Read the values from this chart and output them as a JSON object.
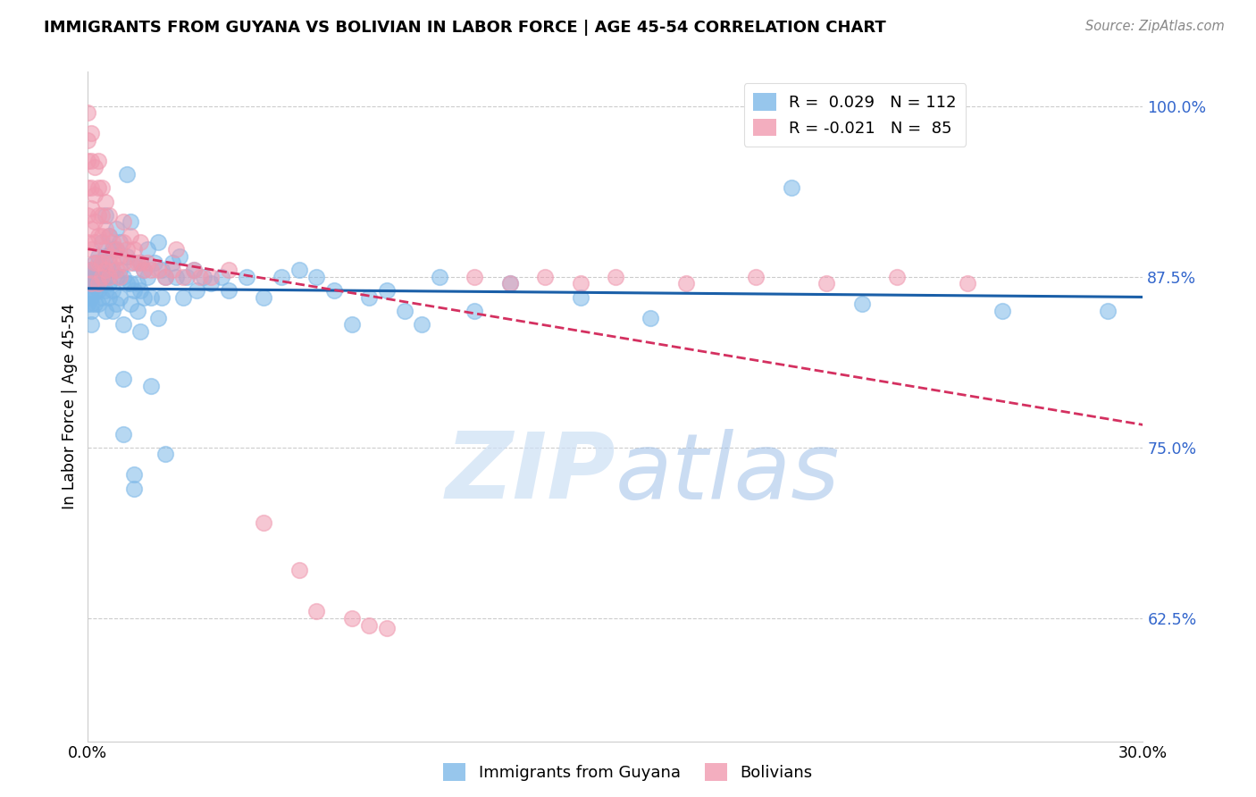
{
  "title": "IMMIGRANTS FROM GUYANA VS BOLIVIAN IN LABOR FORCE | AGE 45-54 CORRELATION CHART",
  "source": "Source: ZipAtlas.com",
  "ylabel": "In Labor Force | Age 45-54",
  "yticks": [
    0.625,
    0.75,
    0.875,
    1.0
  ],
  "ytick_labels": [
    "62.5%",
    "75.0%",
    "87.5%",
    "100.0%"
  ],
  "legend_bottom": [
    "Immigrants from Guyana",
    "Bolivians"
  ],
  "blue_color": "#7db8e8",
  "pink_color": "#f09ab0",
  "blue_line_color": "#1a5fa8",
  "pink_line_color": "#d43060",
  "watermark_zip": "ZIP",
  "watermark_atlas": "atlas",
  "xlim": [
    0.0,
    0.3
  ],
  "ylim": [
    0.535,
    1.025
  ],
  "blue_points": [
    [
      0.0,
      0.87
    ],
    [
      0.0,
      0.88
    ],
    [
      0.0,
      0.86
    ],
    [
      0.0,
      0.855
    ],
    [
      0.001,
      0.865
    ],
    [
      0.001,
      0.875
    ],
    [
      0.001,
      0.855
    ],
    [
      0.001,
      0.87
    ],
    [
      0.001,
      0.88
    ],
    [
      0.001,
      0.85
    ],
    [
      0.001,
      0.86
    ],
    [
      0.001,
      0.84
    ],
    [
      0.002,
      0.875
    ],
    [
      0.002,
      0.885
    ],
    [
      0.002,
      0.865
    ],
    [
      0.002,
      0.855
    ],
    [
      0.002,
      0.87
    ],
    [
      0.003,
      0.89
    ],
    [
      0.003,
      0.875
    ],
    [
      0.003,
      0.865
    ],
    [
      0.003,
      0.855
    ],
    [
      0.003,
      0.87
    ],
    [
      0.003,
      0.88
    ],
    [
      0.004,
      0.9
    ],
    [
      0.004,
      0.885
    ],
    [
      0.004,
      0.87
    ],
    [
      0.004,
      0.86
    ],
    [
      0.004,
      0.875
    ],
    [
      0.005,
      0.92
    ],
    [
      0.005,
      0.89
    ],
    [
      0.005,
      0.875
    ],
    [
      0.005,
      0.865
    ],
    [
      0.005,
      0.85
    ],
    [
      0.006,
      0.905
    ],
    [
      0.006,
      0.885
    ],
    [
      0.006,
      0.87
    ],
    [
      0.006,
      0.86
    ],
    [
      0.007,
      0.895
    ],
    [
      0.007,
      0.88
    ],
    [
      0.007,
      0.865
    ],
    [
      0.007,
      0.85
    ],
    [
      0.008,
      0.91
    ],
    [
      0.008,
      0.895
    ],
    [
      0.008,
      0.875
    ],
    [
      0.008,
      0.855
    ],
    [
      0.009,
      0.9
    ],
    [
      0.009,
      0.88
    ],
    [
      0.009,
      0.86
    ],
    [
      0.01,
      0.875
    ],
    [
      0.01,
      0.84
    ],
    [
      0.01,
      0.8
    ],
    [
      0.01,
      0.76
    ],
    [
      0.011,
      0.95
    ],
    [
      0.011,
      0.89
    ],
    [
      0.011,
      0.87
    ],
    [
      0.012,
      0.915
    ],
    [
      0.012,
      0.87
    ],
    [
      0.012,
      0.855
    ],
    [
      0.013,
      0.885
    ],
    [
      0.013,
      0.865
    ],
    [
      0.013,
      0.73
    ],
    [
      0.013,
      0.72
    ],
    [
      0.014,
      0.87
    ],
    [
      0.014,
      0.85
    ],
    [
      0.015,
      0.885
    ],
    [
      0.015,
      0.865
    ],
    [
      0.015,
      0.835
    ],
    [
      0.016,
      0.88
    ],
    [
      0.016,
      0.86
    ],
    [
      0.017,
      0.895
    ],
    [
      0.017,
      0.875
    ],
    [
      0.018,
      0.86
    ],
    [
      0.018,
      0.795
    ],
    [
      0.019,
      0.885
    ],
    [
      0.02,
      0.9
    ],
    [
      0.02,
      0.845
    ],
    [
      0.021,
      0.88
    ],
    [
      0.021,
      0.86
    ],
    [
      0.022,
      0.875
    ],
    [
      0.022,
      0.745
    ],
    [
      0.024,
      0.885
    ],
    [
      0.025,
      0.875
    ],
    [
      0.026,
      0.89
    ],
    [
      0.027,
      0.86
    ],
    [
      0.028,
      0.875
    ],
    [
      0.03,
      0.88
    ],
    [
      0.031,
      0.865
    ],
    [
      0.033,
      0.875
    ],
    [
      0.035,
      0.87
    ],
    [
      0.038,
      0.875
    ],
    [
      0.04,
      0.865
    ],
    [
      0.045,
      0.875
    ],
    [
      0.05,
      0.86
    ],
    [
      0.055,
      0.875
    ],
    [
      0.06,
      0.88
    ],
    [
      0.065,
      0.875
    ],
    [
      0.07,
      0.865
    ],
    [
      0.075,
      0.84
    ],
    [
      0.08,
      0.86
    ],
    [
      0.085,
      0.865
    ],
    [
      0.09,
      0.85
    ],
    [
      0.095,
      0.84
    ],
    [
      0.1,
      0.875
    ],
    [
      0.11,
      0.85
    ],
    [
      0.12,
      0.87
    ],
    [
      0.14,
      0.86
    ],
    [
      0.16,
      0.845
    ],
    [
      0.2,
      0.94
    ],
    [
      0.22,
      0.855
    ],
    [
      0.26,
      0.85
    ],
    [
      0.29,
      0.85
    ]
  ],
  "pink_points": [
    [
      0.0,
      0.995
    ],
    [
      0.0,
      0.975
    ],
    [
      0.0,
      0.96
    ],
    [
      0.0,
      0.94
    ],
    [
      0.0,
      0.92
    ],
    [
      0.0,
      0.9
    ],
    [
      0.001,
      0.98
    ],
    [
      0.001,
      0.96
    ],
    [
      0.001,
      0.94
    ],
    [
      0.001,
      0.925
    ],
    [
      0.001,
      0.91
    ],
    [
      0.001,
      0.895
    ],
    [
      0.001,
      0.88
    ],
    [
      0.001,
      0.87
    ],
    [
      0.002,
      0.955
    ],
    [
      0.002,
      0.935
    ],
    [
      0.002,
      0.915
    ],
    [
      0.002,
      0.9
    ],
    [
      0.002,
      0.885
    ],
    [
      0.003,
      0.96
    ],
    [
      0.003,
      0.94
    ],
    [
      0.003,
      0.92
    ],
    [
      0.003,
      0.905
    ],
    [
      0.003,
      0.885
    ],
    [
      0.003,
      0.87
    ],
    [
      0.004,
      0.94
    ],
    [
      0.004,
      0.92
    ],
    [
      0.004,
      0.905
    ],
    [
      0.004,
      0.885
    ],
    [
      0.004,
      0.875
    ],
    [
      0.005,
      0.93
    ],
    [
      0.005,
      0.91
    ],
    [
      0.005,
      0.895
    ],
    [
      0.005,
      0.88
    ],
    [
      0.006,
      0.92
    ],
    [
      0.006,
      0.905
    ],
    [
      0.006,
      0.89
    ],
    [
      0.006,
      0.875
    ],
    [
      0.007,
      0.9
    ],
    [
      0.007,
      0.885
    ],
    [
      0.008,
      0.895
    ],
    [
      0.008,
      0.88
    ],
    [
      0.009,
      0.89
    ],
    [
      0.009,
      0.875
    ],
    [
      0.01,
      0.915
    ],
    [
      0.01,
      0.9
    ],
    [
      0.01,
      0.885
    ],
    [
      0.011,
      0.895
    ],
    [
      0.012,
      0.905
    ],
    [
      0.012,
      0.885
    ],
    [
      0.013,
      0.895
    ],
    [
      0.014,
      0.885
    ],
    [
      0.015,
      0.9
    ],
    [
      0.015,
      0.885
    ],
    [
      0.016,
      0.88
    ],
    [
      0.017,
      0.885
    ],
    [
      0.018,
      0.88
    ],
    [
      0.02,
      0.88
    ],
    [
      0.022,
      0.875
    ],
    [
      0.024,
      0.88
    ],
    [
      0.025,
      0.895
    ],
    [
      0.027,
      0.875
    ],
    [
      0.03,
      0.88
    ],
    [
      0.032,
      0.875
    ],
    [
      0.035,
      0.875
    ],
    [
      0.04,
      0.88
    ],
    [
      0.05,
      0.695
    ],
    [
      0.06,
      0.66
    ],
    [
      0.065,
      0.63
    ],
    [
      0.075,
      0.625
    ],
    [
      0.08,
      0.62
    ],
    [
      0.085,
      0.618
    ],
    [
      0.11,
      0.875
    ],
    [
      0.12,
      0.87
    ],
    [
      0.13,
      0.875
    ],
    [
      0.14,
      0.87
    ],
    [
      0.15,
      0.875
    ],
    [
      0.17,
      0.87
    ],
    [
      0.19,
      0.875
    ],
    [
      0.21,
      0.87
    ],
    [
      0.23,
      0.875
    ],
    [
      0.25,
      0.87
    ]
  ]
}
